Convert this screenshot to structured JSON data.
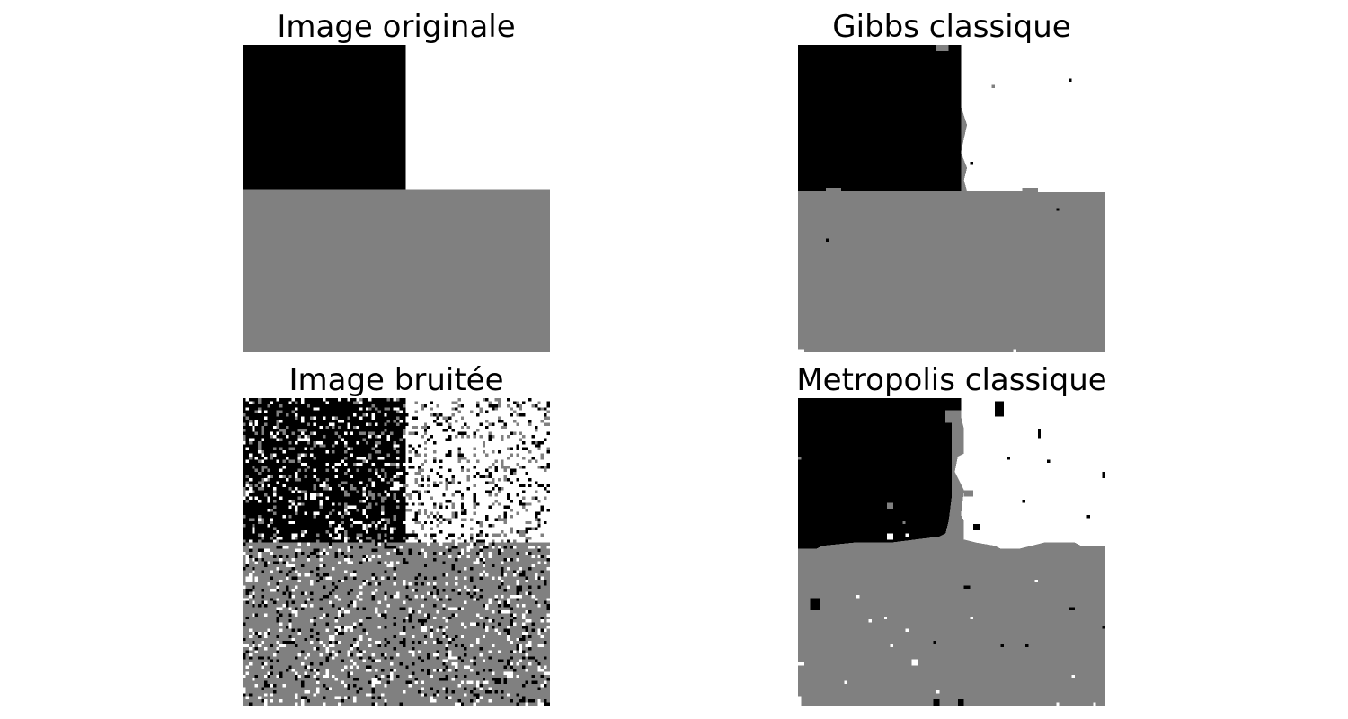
{
  "panels": [
    {
      "id": "original",
      "title": "Image originale"
    },
    {
      "id": "gibbs",
      "title": "Gibbs classique"
    },
    {
      "id": "noisy",
      "title": "Image bruitée"
    },
    {
      "id": "metropolis",
      "title": "Metropolis classique"
    }
  ],
  "grid_size": 100,
  "palette": {
    "class0": "#000000",
    "class1": "#ffffff",
    "class2": "#808080"
  }
}
